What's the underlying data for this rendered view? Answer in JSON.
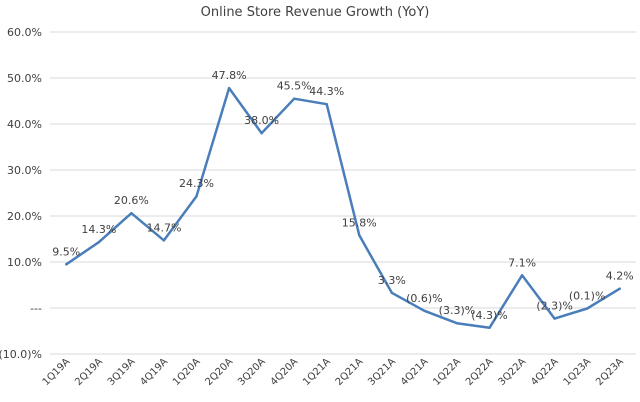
{
  "chart_data": {
    "type": "line",
    "title": "Online Store Revenue Growth (YoY)",
    "xlabel": "",
    "ylabel": "",
    "ylim": [
      -10,
      60
    ],
    "yticks": [
      {
        "value": 60,
        "label": "60.0%"
      },
      {
        "value": 50,
        "label": "50.0%"
      },
      {
        "value": 40,
        "label": "40.0%"
      },
      {
        "value": 30,
        "label": "30.0%"
      },
      {
        "value": 20,
        "label": "20.0%"
      },
      {
        "value": 10,
        "label": "10.0%"
      },
      {
        "value": 0,
        "label": "---"
      },
      {
        "value": -10,
        "label": "(10.0)%"
      }
    ],
    "grid": true,
    "categories": [
      "1Q19A",
      "2Q19A",
      "3Q19A",
      "4Q19A",
      "1Q20A",
      "2Q20A",
      "3Q20A",
      "4Q20A",
      "1Q21A",
      "2Q21A",
      "3Q21A",
      "4Q21A",
      "1Q22A",
      "2Q22A",
      "3Q22A",
      "4Q22A",
      "1Q23A",
      "2Q23A"
    ],
    "series": [
      {
        "color": "#4a7ebb",
        "values": [
          9.5,
          14.3,
          20.6,
          14.7,
          24.3,
          47.8,
          38.0,
          45.5,
          44.3,
          15.8,
          3.3,
          -0.6,
          -3.3,
          -4.3,
          7.1,
          -2.3,
          -0.1,
          4.2
        ],
        "data_labels": [
          "9.5%",
          "14.3%",
          "20.6%",
          "14.7%",
          "24.3%",
          "47.8%",
          "38.0%",
          "45.5%",
          "44.3%",
          "15.8%",
          "3.3%",
          "(0.6)%",
          "(3.3)%",
          "(4.3)%",
          "7.1%",
          "(2.3)%",
          "(0.1)%",
          "4.2%"
        ]
      }
    ]
  }
}
